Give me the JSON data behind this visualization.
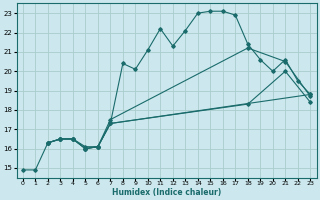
{
  "xlabel": "Humidex (Indice chaleur)",
  "bg_color": "#cce8ee",
  "grid_color": "#aacccc",
  "line_color": "#1a6b6b",
  "xlim": [
    -0.5,
    23.5
  ],
  "ylim": [
    14.5,
    23.5
  ],
  "xticks": [
    0,
    1,
    2,
    3,
    4,
    5,
    6,
    7,
    8,
    9,
    10,
    11,
    12,
    13,
    14,
    15,
    16,
    17,
    18,
    19,
    20,
    21,
    22,
    23
  ],
  "yticks": [
    15,
    16,
    17,
    18,
    19,
    20,
    21,
    22,
    23
  ],
  "lines": [
    {
      "x": [
        0,
        1,
        2,
        3,
        4,
        5,
        6,
        7,
        8,
        9,
        10,
        11,
        12,
        13,
        14,
        15,
        16,
        17,
        18,
        19,
        20,
        21,
        22,
        23
      ],
      "y": [
        14.9,
        14.9,
        16.3,
        16.5,
        16.5,
        16.1,
        16.1,
        17.3,
        20.4,
        20.1,
        21.1,
        22.2,
        21.3,
        22.1,
        23.0,
        23.1,
        23.1,
        22.9,
        21.4,
        20.6,
        20.0,
        20.6,
        19.5,
        18.8
      ],
      "marker": true
    },
    {
      "x": [
        2,
        3,
        4,
        5,
        6,
        7,
        23
      ],
      "y": [
        16.3,
        16.5,
        16.5,
        16.0,
        16.1,
        17.3,
        18.8
      ],
      "marker": true
    },
    {
      "x": [
        2,
        3,
        4,
        5,
        6,
        7,
        18,
        21,
        23
      ],
      "y": [
        16.3,
        16.5,
        16.5,
        16.0,
        16.1,
        17.5,
        21.2,
        20.5,
        18.7
      ],
      "marker": true
    },
    {
      "x": [
        2,
        3,
        4,
        5,
        6,
        7,
        18,
        21,
        23
      ],
      "y": [
        16.3,
        16.5,
        16.5,
        16.0,
        16.1,
        17.3,
        18.3,
        20.0,
        18.4
      ],
      "marker": true
    }
  ]
}
